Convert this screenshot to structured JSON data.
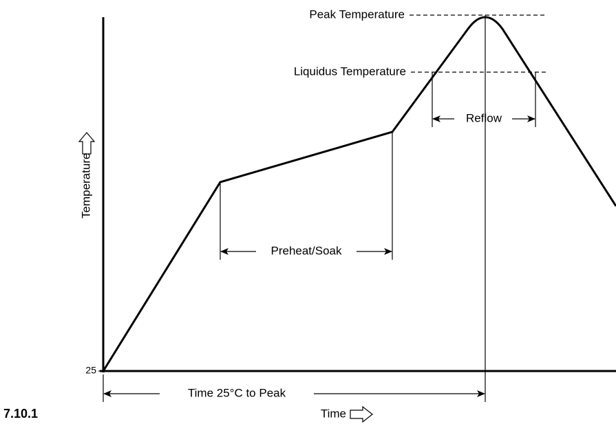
{
  "diagram": {
    "section": "7.10.1",
    "peak_label": "Peak Temperature",
    "liquidus_label": "Liquidus Temperature",
    "reflow_label": "Reflow",
    "preheat_label": "Preheat/Soak",
    "y_axis_label": "Temperature",
    "y_start_label": "25",
    "time_to_peak_label": "Time 25°C to Peak",
    "x_axis_label": "Time"
  }
}
